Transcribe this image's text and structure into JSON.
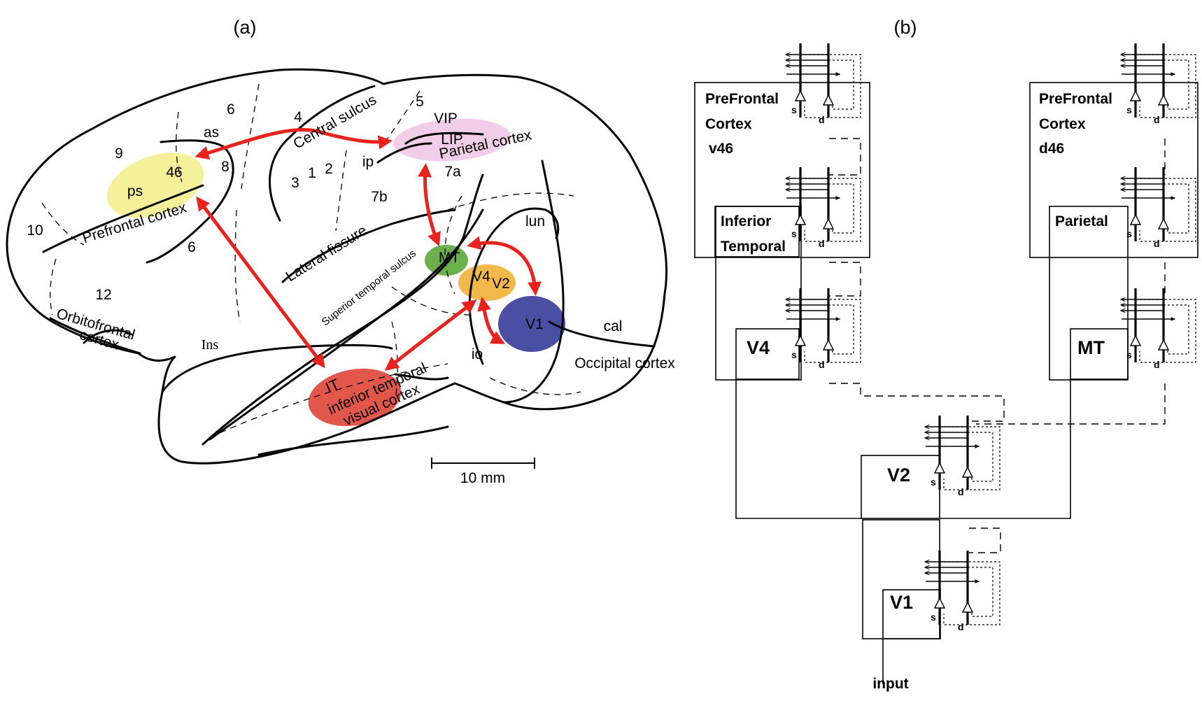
{
  "panel_labels": {
    "a": "(a)",
    "b": "(b)"
  },
  "brain": {
    "areas": [
      "9",
      "46",
      "8",
      "6",
      "6",
      "4",
      "5",
      "3",
      "1",
      "2",
      "7a",
      "7b",
      "10",
      "12",
      "ps",
      "as",
      "ip",
      "lun",
      "cal",
      "io",
      "Ins"
    ],
    "sulci": {
      "central": "Central sulcus",
      "lateral": "Lateral fissure",
      "superior_temporal": "Superior temporal sulcus"
    },
    "regions": {
      "prefrontal": "Prefrontal cortex",
      "orbitofrontal_1": "Orbitofrontal",
      "orbitofrontal_2": "cortex",
      "parietal": "Parietal cortex",
      "occipital": "Occipital cortex",
      "it_1": "IT",
      "it_2": "inferior temporal",
      "it_3": "visual cortex"
    },
    "highlights": {
      "vip": "VIP",
      "lip": "LIP",
      "mt": "MT",
      "v4": "V4",
      "v2": "V2",
      "v1": "V1"
    },
    "colors": {
      "prefrontal": "#f5f09a",
      "parietal": "#f2cde8",
      "mt": "#6ab04c",
      "v4v2": "#f3b84a",
      "v1": "#4b4fa3",
      "it": "#e2574c",
      "arrow": "#e8221d"
    },
    "scale_bar": "10 mm"
  },
  "network": {
    "boxes": {
      "pfc_v46_1": "PreFrontal",
      "pfc_v46_2": "Cortex",
      "pfc_v46_3": "v46",
      "pfc_d46_1": "PreFrontal",
      "pfc_d46_2": "Cortex",
      "pfc_d46_3": "d46",
      "it_1": "Inferior",
      "it_2": "Temporal",
      "parietal": "Parietal",
      "v4": "V4",
      "mt": "MT",
      "v2": "V2",
      "v1": "V1"
    },
    "unit_labels": {
      "s": "s",
      "d": "d"
    },
    "input_label": "input"
  }
}
